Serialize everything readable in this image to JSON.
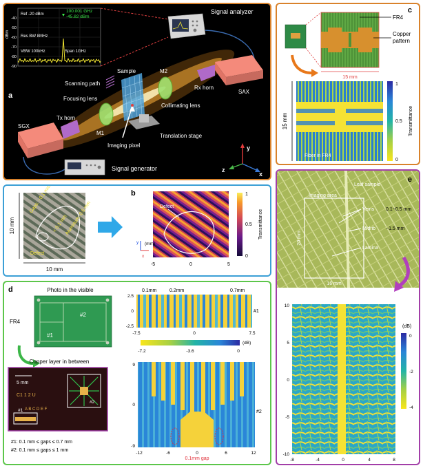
{
  "panel_a": {
    "label": "a",
    "spectrum": {
      "ref": "Ref -20 dBm",
      "res_bw": "Res BW 8MHz",
      "vbw": "VBW 100kHz",
      "span": "Span 1GHz",
      "marker_freq": "100.001 GHz",
      "marker_level": "-45.82 dBm",
      "y_unit": "dBm",
      "y_ticks": [
        "-40",
        "-50",
        "-60",
        "-70",
        "-80",
        "-90"
      ]
    },
    "labels": {
      "signal_analyzer": "Signal analyzer",
      "sax": "SAX",
      "sgx": "SGX",
      "signal_generator": "Signal generator",
      "tx_horn": "Tx horn",
      "rx_horn": "Rx horn",
      "focusing_lens": "Focusing lens",
      "collimating_lens": "Collimating lens",
      "scanning_path": "Scanning path",
      "sample": "Sample",
      "m1": "M1",
      "m2": "M2",
      "imaging_pixel": "Imaging pixel",
      "translation_stage": "Translation stage",
      "axis_x": "x",
      "axis_y": "y",
      "axis_z": "z"
    },
    "colors": {
      "background": "#000000",
      "border": "#d9822b",
      "beam": "#ff9a1e",
      "box": "#f07b6c"
    }
  },
  "panel_b": {
    "label": "b",
    "photo": {
      "gap_text": "Gaps: ~0.1 mm",
      "defect_size": "< 0.1 mm",
      "aluminum": "Aluminum: 0.6 mm",
      "defect": "Defect",
      "scale_h": "10 mm",
      "scale_w": "10 mm"
    },
    "map": {
      "defect": "Defect",
      "x_ticks": [
        "-5",
        "0",
        "5"
      ],
      "y_ticks": [],
      "axes_unit": "(mm)",
      "axis_x": "x",
      "axis_y": "y",
      "colorbar_title": "Transmittance",
      "colorbar_ticks": [
        "1",
        "0.5",
        "0"
      ]
    },
    "colors": {
      "border": "#3b9fd6",
      "arrow": "#2fa8e8"
    }
  },
  "panel_c": {
    "label": "c",
    "fr4": "FR4",
    "copper": "Copper\npattern",
    "copper_line1": "Copper",
    "copper_line2": "pattern",
    "scale_w": "15 mm",
    "scale_h": "15 mm",
    "fiber": "Fiber in FR4",
    "colorbar_title": "Transmittance",
    "colorbar_ticks": [
      "1",
      "0.5",
      "0"
    ],
    "colors": {
      "border": "#d9822b",
      "arrow": "#e8781a"
    }
  },
  "panel_d": {
    "label": "d",
    "photo_title": "Photo in the visible",
    "fr4": "FR4",
    "region1": "#1",
    "region2": "#2",
    "copper_title": "Copper layer in between",
    "scale": "5 mm",
    "copper_text": "C1 1 2 U",
    "gap_row": "A B C D E F",
    "notes": [
      "#1: 0.1 mm ≤ gaps ≤ 0.7 mm",
      "#2: 0.1 mm ≤ gaps ≤ 1 mm"
    ],
    "top_map": {
      "annotations": [
        "0.1mm",
        "0.2mm",
        "0.7mm"
      ],
      "x_ticks": [
        "-7.5",
        "0",
        "7.5"
      ],
      "y_ticks": [
        "2.5",
        "0",
        "-2.5"
      ],
      "region": "#1"
    },
    "colorbar": {
      "ticks": [
        "-7.2",
        "-3.6",
        "0"
      ],
      "unit": "(dB)"
    },
    "bottom_map": {
      "x_ticks": [
        "-12",
        "-6",
        "0",
        "6",
        "12"
      ],
      "y_ticks": [
        "9",
        "0",
        "-9"
      ],
      "region": "#2",
      "gap": "0.1mm gap"
    },
    "colors": {
      "border": "#5cc64a",
      "arrow": "#3cb648",
      "annotation": "#e0303a"
    }
  },
  "panel_e": {
    "label": "e",
    "leaf_sample": "Leaf sample",
    "imaging_area": "Imaging area",
    "veins": "Veins",
    "midrib": "Midrib",
    "lamina": "Lamina",
    "veins_size": "0.1~0.5 mm",
    "midrib_size": "~1.5 mm",
    "scale_h": "20 mm",
    "scale_w": "16 mm",
    "map": {
      "x_ticks": [
        "-8",
        "-4",
        "0",
        "4",
        "8"
      ],
      "y_ticks": [
        "10",
        "5",
        "0",
        "-5",
        "-10"
      ],
      "colorbar_unit": "(dB)",
      "colorbar_ticks": [
        "0",
        "-2",
        "-4"
      ]
    },
    "colors": {
      "border": "#a23ea8",
      "arrow": "#b13fbd"
    }
  }
}
